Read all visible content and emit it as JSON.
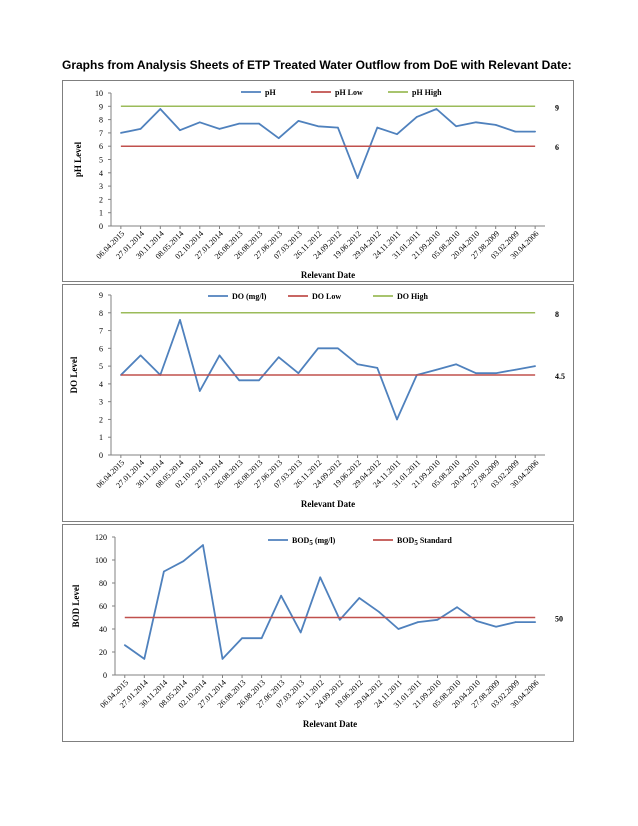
{
  "heading": "Graphs from Analysis Sheets of ETP Treated Water Outflow from DoE with Relevant Date:",
  "colors": {
    "series": "#4f81bd",
    "low": "#c0504d",
    "high": "#9bbb59",
    "grid": "#808080"
  },
  "categories": [
    "06.04.2015",
    "27.01.2014",
    "30.11.2014",
    "08.05.2014",
    "02.10.2014",
    "27.01.2014",
    "26.08.2013",
    "26.08.2013",
    "27.06.2013",
    "07.03.2013",
    "26.11.2012",
    "24.09.2012",
    "19.06.2012",
    "29.04.2012",
    "24.11.2011",
    "31.01.2011",
    "21.09.2010",
    "05.08.2010",
    "20.04.2010",
    "27.08.2009",
    "03.02.2009",
    "30.04.2006"
  ],
  "chart_data": [
    {
      "type": "line",
      "xlabel": "Relevant Date",
      "ylabel": "pH Level",
      "ylim": [
        0,
        10
      ],
      "yticks": [
        "0",
        "1",
        "2",
        "3",
        "4",
        "5",
        "6",
        "7",
        "8",
        "9",
        "10"
      ],
      "legend_position": "top",
      "series": [
        {
          "name": "pH",
          "values": [
            7.0,
            7.3,
            8.8,
            7.2,
            7.8,
            7.3,
            7.7,
            7.7,
            6.6,
            7.9,
            7.5,
            7.4,
            3.6,
            7.4,
            6.9,
            8.2,
            8.8,
            7.5,
            7.8,
            7.6,
            7.1,
            7.1
          ],
          "style": "series"
        },
        {
          "name": "pH_Low",
          "constant": 6,
          "label": "6",
          "style": "low"
        },
        {
          "name": "pH_High",
          "constant": 9,
          "label": "9",
          "style": "high"
        }
      ]
    },
    {
      "type": "line",
      "xlabel": "Relevant Date",
      "ylabel": "DO Level",
      "ylim": [
        0,
        9
      ],
      "yticks": [
        "0",
        "1",
        "2",
        "3",
        "4",
        "5",
        "6",
        "7",
        "8",
        "9"
      ],
      "legend_position": "top",
      "series": [
        {
          "name": "DO (mg/l)",
          "values": [
            4.5,
            5.6,
            4.5,
            7.6,
            3.6,
            5.6,
            4.2,
            4.2,
            5.5,
            4.6,
            6.0,
            6.0,
            5.1,
            4.9,
            2.0,
            4.5,
            4.8,
            5.1,
            4.6,
            4.6,
            4.8,
            5.0
          ],
          "style": "series"
        },
        {
          "name": "DO_Low",
          "constant": 4.5,
          "label": "4.5",
          "style": "low"
        },
        {
          "name": "DO_High",
          "constant": 8,
          "label": "8",
          "style": "high"
        }
      ]
    },
    {
      "type": "line",
      "xlabel": "Relevant Date",
      "ylabel": "BOD Level",
      "ylim": [
        0,
        120
      ],
      "yticks": [
        "0",
        "20",
        "40",
        "60",
        "80",
        "100",
        "120"
      ],
      "legend_position": "top",
      "series": [
        {
          "name": "BOD5 (mg/l)",
          "values": [
            26,
            14,
            90,
            99,
            113,
            14,
            32,
            32,
            69,
            37,
            85,
            48,
            67,
            55,
            40,
            46,
            48,
            59,
            47,
            42,
            46,
            46
          ],
          "style": "series"
        },
        {
          "name": "BOD5_Standard",
          "constant": 50,
          "label": "50",
          "style": "low"
        }
      ]
    }
  ]
}
